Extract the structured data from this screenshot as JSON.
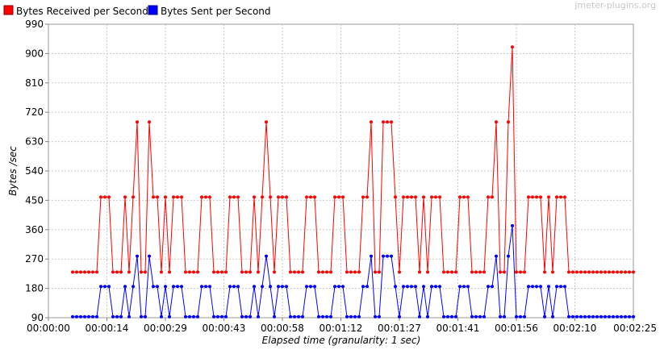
{
  "watermark": "jmeter-plugins.org",
  "chart_data": {
    "type": "line",
    "xlabel": "Elapsed time (granularity: 1 sec)",
    "ylabel": "Bytes /sec",
    "ylim": [
      90,
      990
    ],
    "y_ticks": [
      90,
      180,
      270,
      360,
      450,
      540,
      630,
      720,
      810,
      900,
      990
    ],
    "x_tick_labels": [
      "00:00:00",
      "00:00:14",
      "00:00:29",
      "00:00:43",
      "00:00:58",
      "00:01:12",
      "00:01:27",
      "00:01:41",
      "00:01:56",
      "00:02:10",
      "00:02:25"
    ],
    "xlim_seconds": [
      0,
      145
    ],
    "grid": true,
    "legend_position": "top-left",
    "x_seconds": [
      6,
      7,
      8,
      9,
      10,
      11,
      12,
      13,
      14,
      15,
      16,
      17,
      18,
      19,
      20,
      21,
      22,
      23,
      24,
      25,
      26,
      27,
      28,
      29,
      30,
      31,
      32,
      33,
      34,
      35,
      36,
      37,
      38,
      39,
      40,
      41,
      42,
      43,
      44,
      45,
      46,
      47,
      48,
      49,
      50,
      51,
      52,
      53,
      54,
      55,
      56,
      57,
      58,
      59,
      60,
      61,
      62,
      63,
      64,
      65,
      66,
      67,
      68,
      69,
      70,
      71,
      72,
      73,
      74,
      75,
      76,
      77,
      78,
      79,
      80,
      81,
      82,
      83,
      84,
      85,
      86,
      87,
      88,
      89,
      90,
      91,
      92,
      93,
      94,
      95,
      96,
      97,
      98,
      99,
      100,
      101,
      102,
      103,
      104,
      105,
      106,
      107,
      108,
      109,
      110,
      111,
      112,
      113,
      114,
      115,
      116,
      117,
      118,
      119,
      120,
      121,
      122,
      123,
      124,
      125,
      126,
      127,
      128,
      129,
      130,
      131,
      132,
      133,
      134,
      135,
      136,
      137,
      138,
      139,
      140,
      141,
      142,
      143,
      144,
      145
    ],
    "series": [
      {
        "name": "Bytes Received per Second",
        "color": "#ff0000",
        "values": [
          230,
          230,
          230,
          230,
          230,
          230,
          230,
          460,
          460,
          460,
          230,
          230,
          230,
          460,
          230,
          460,
          690,
          230,
          230,
          690,
          460,
          460,
          230,
          460,
          230,
          460,
          460,
          460,
          230,
          230,
          230,
          230,
          460,
          460,
          460,
          230,
          230,
          230,
          230,
          460,
          460,
          460,
          230,
          230,
          230,
          460,
          230,
          460,
          690,
          460,
          230,
          460,
          460,
          460,
          230,
          230,
          230,
          230,
          460,
          460,
          460,
          230,
          230,
          230,
          230,
          460,
          460,
          460,
          230,
          230,
          230,
          230,
          460,
          460,
          690,
          230,
          230,
          690,
          690,
          690,
          460,
          230,
          460,
          460,
          460,
          460,
          230,
          460,
          230,
          460,
          460,
          460,
          230,
          230,
          230,
          230,
          460,
          460,
          460,
          230,
          230,
          230,
          230,
          460,
          460,
          690,
          230,
          230,
          690,
          920,
          230,
          230,
          230,
          460,
          460,
          460,
          460,
          230,
          460,
          230,
          460,
          460,
          460,
          230,
          230,
          230,
          230,
          230,
          230,
          230,
          230,
          230,
          230,
          230,
          230,
          230,
          230,
          230,
          230,
          230
        ],
        "style": "line-with-dots"
      },
      {
        "name": "Bytes Sent per Second",
        "color": "#0000ff",
        "values": [
          93,
          93,
          93,
          93,
          93,
          93,
          93,
          186,
          186,
          186,
          93,
          93,
          93,
          186,
          93,
          186,
          279,
          93,
          93,
          279,
          186,
          186,
          93,
          186,
          93,
          186,
          186,
          186,
          93,
          93,
          93,
          93,
          186,
          186,
          186,
          93,
          93,
          93,
          93,
          186,
          186,
          186,
          93,
          93,
          93,
          186,
          93,
          186,
          279,
          186,
          93,
          186,
          186,
          186,
          93,
          93,
          93,
          93,
          186,
          186,
          186,
          93,
          93,
          93,
          93,
          186,
          186,
          186,
          93,
          93,
          93,
          93,
          186,
          186,
          279,
          93,
          93,
          279,
          279,
          279,
          186,
          93,
          186,
          186,
          186,
          186,
          93,
          186,
          93,
          186,
          186,
          186,
          93,
          93,
          93,
          93,
          186,
          186,
          186,
          93,
          93,
          93,
          93,
          186,
          186,
          279,
          93,
          93,
          279,
          372,
          93,
          93,
          93,
          186,
          186,
          186,
          186,
          93,
          186,
          93,
          186,
          186,
          186,
          93,
          93,
          93,
          93,
          93,
          93,
          93,
          93,
          93,
          93,
          93,
          93,
          93,
          93,
          93,
          93,
          93
        ],
        "style": "line-with-dots"
      }
    ]
  }
}
